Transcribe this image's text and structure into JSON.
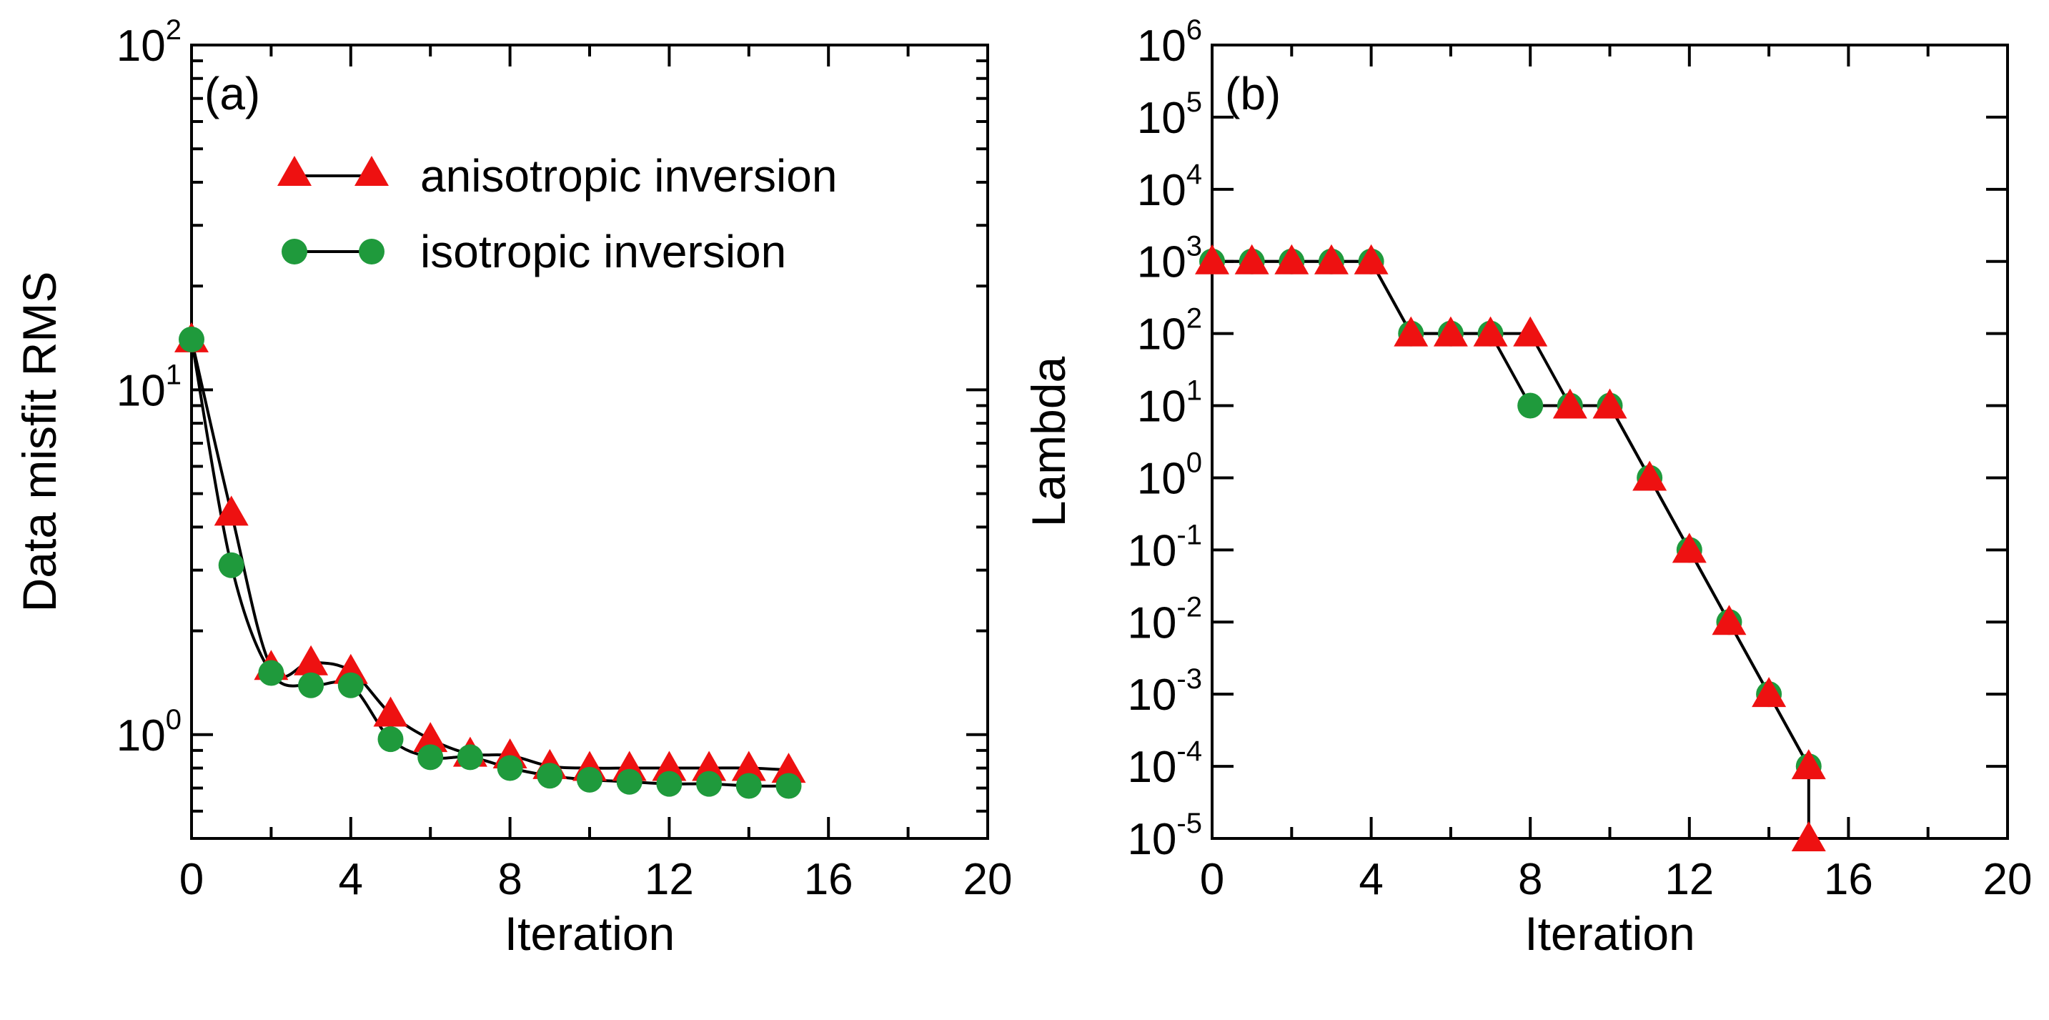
{
  "colors": {
    "anisotropic": "#ee1111",
    "isotropic": "#1f9a3c",
    "line": "#000000"
  },
  "chart_data": [
    {
      "type": "line",
      "panel_label": "(a)",
      "xlabel": "Iteration",
      "ylabel": "Data misfit RMS",
      "y_scale": "log",
      "xlim": [
        0,
        20
      ],
      "ylim": [
        0.5,
        100
      ],
      "x_ticks": [
        0,
        4,
        8,
        12,
        16,
        20
      ],
      "y_ticks": [
        {
          "value": 1,
          "base": "10",
          "exp": "0"
        },
        {
          "value": 10,
          "base": "10",
          "exp": "1"
        },
        {
          "value": 100,
          "base": "10",
          "exp": "2"
        }
      ],
      "legend_position": "top-right",
      "series": [
        {
          "name": "anisotropic inversion",
          "marker": "triangle",
          "x": [
            0,
            1,
            2,
            3,
            4,
            5,
            6,
            7,
            8,
            9,
            10,
            11,
            12,
            13,
            14,
            15
          ],
          "y": [
            14.0,
            4.4,
            1.57,
            1.62,
            1.53,
            1.15,
            0.97,
            0.88,
            0.87,
            0.81,
            0.8,
            0.8,
            0.8,
            0.8,
            0.8,
            0.79
          ]
        },
        {
          "name": "isotropic inversion",
          "marker": "circle",
          "x": [
            0,
            1,
            2,
            3,
            4,
            5,
            6,
            7,
            8,
            9,
            10,
            11,
            12,
            13,
            14,
            15
          ],
          "y": [
            14.0,
            3.1,
            1.51,
            1.39,
            1.39,
            0.97,
            0.86,
            0.86,
            0.8,
            0.76,
            0.74,
            0.73,
            0.72,
            0.72,
            0.71,
            0.71
          ]
        }
      ]
    },
    {
      "type": "line",
      "panel_label": "(b)",
      "xlabel": "Iteration",
      "ylabel": "Lambda",
      "y_scale": "log",
      "step": true,
      "xlim": [
        0,
        20
      ],
      "ylim": [
        1e-05,
        1000000
      ],
      "x_ticks": [
        0,
        4,
        8,
        12,
        16,
        20
      ],
      "y_ticks": [
        {
          "value": 1e-05,
          "base": "10",
          "exp": "-5"
        },
        {
          "value": 0.0001,
          "base": "10",
          "exp": "-4"
        },
        {
          "value": 0.001,
          "base": "10",
          "exp": "-3"
        },
        {
          "value": 0.01,
          "base": "10",
          "exp": "-2"
        },
        {
          "value": 0.1,
          "base": "10",
          "exp": "-1"
        },
        {
          "value": 1,
          "base": "10",
          "exp": "0"
        },
        {
          "value": 10,
          "base": "10",
          "exp": "1"
        },
        {
          "value": 100,
          "base": "10",
          "exp": "2"
        },
        {
          "value": 1000,
          "base": "10",
          "exp": "3"
        },
        {
          "value": 10000,
          "base": "10",
          "exp": "4"
        },
        {
          "value": 100000,
          "base": "10",
          "exp": "5"
        },
        {
          "value": 1000000,
          "base": "10",
          "exp": "6"
        }
      ],
      "series": [
        {
          "name": "anisotropic inversion",
          "marker": "triangle",
          "x": [
            0,
            1,
            2,
            3,
            4,
            5,
            6,
            7,
            8,
            9,
            10,
            11,
            12,
            13,
            14,
            15,
            15
          ],
          "y": [
            1000,
            1000,
            1000,
            1000,
            1000,
            100,
            100,
            100,
            100,
            10,
            10,
            1,
            0.1,
            0.01,
            0.001,
            0.0001,
            1e-05
          ]
        },
        {
          "name": "isotropic inversion",
          "marker": "circle",
          "x": [
            0,
            1,
            2,
            3,
            4,
            5,
            6,
            7,
            8,
            9,
            10,
            11,
            12,
            13,
            14,
            15
          ],
          "y": [
            1000,
            1000,
            1000,
            1000,
            1000,
            100,
            100,
            100,
            10,
            10,
            10,
            1,
            0.1,
            0.01,
            0.001,
            0.0001
          ]
        }
      ]
    }
  ]
}
